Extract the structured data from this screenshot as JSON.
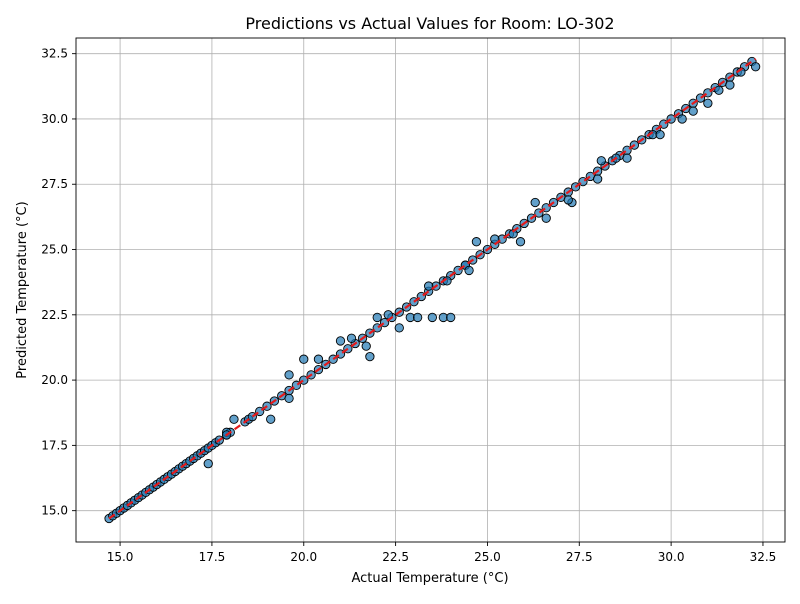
{
  "chart_data": {
    "type": "scatter",
    "title": "Predictions vs Actual Values for Room: LO-302",
    "xlabel": "Actual Temperature (°C)",
    "ylabel": "Predicted Temperature (°C)",
    "xlim": [
      13.8,
      33.1
    ],
    "ylim": [
      13.8,
      33.1
    ],
    "xticks": [
      15.0,
      17.5,
      20.0,
      22.5,
      25.0,
      27.5,
      30.0,
      32.5
    ],
    "yticks": [
      15.0,
      17.5,
      20.0,
      22.5,
      25.0,
      27.5,
      30.0,
      32.5
    ],
    "xtick_labels": [
      "15.0",
      "17.5",
      "20.0",
      "22.5",
      "25.0",
      "27.5",
      "30.0",
      "32.5"
    ],
    "ytick_labels": [
      "15.0",
      "17.5",
      "20.0",
      "22.5",
      "25.0",
      "27.5",
      "30.0",
      "32.5"
    ],
    "grid": true,
    "reference_line": {
      "x": [
        14.7,
        32.3
      ],
      "y": [
        14.7,
        32.3
      ],
      "color": "#e31a1c",
      "style": "dashed"
    },
    "point_color": "#1f77b4",
    "series": [
      {
        "x": [
          14.7,
          14.8,
          14.9,
          15.0,
          15.1,
          15.2,
          15.3,
          15.4,
          15.5,
          15.6,
          15.7,
          15.8,
          15.9,
          16.0,
          16.1,
          16.2,
          16.3,
          16.4,
          16.5,
          16.6,
          16.7,
          16.8,
          16.9,
          17.0,
          17.1,
          17.2,
          17.3,
          17.4,
          17.5,
          17.6,
          17.7,
          17.9,
          18.0,
          18.4,
          18.5,
          18.6,
          18.8,
          19.0,
          19.2,
          19.4,
          19.6,
          19.8,
          20.0,
          20.2,
          20.4,
          20.6,
          20.8,
          21.0,
          21.2,
          21.4,
          21.6,
          21.8,
          22.0,
          22.2,
          22.4,
          22.6,
          22.8,
          23.0,
          23.2,
          23.4,
          23.6,
          23.8,
          24.0,
          24.2,
          24.4,
          24.6,
          24.8,
          25.0,
          25.2,
          25.4,
          25.6,
          25.8,
          26.0,
          26.2,
          26.4,
          26.6,
          26.8,
          27.0,
          27.2,
          27.4,
          27.6,
          27.8,
          28.0,
          28.2,
          28.4,
          28.6,
          28.8,
          29.0,
          29.2,
          29.4,
          29.6,
          29.8,
          30.0,
          30.2,
          30.4,
          30.6,
          30.8,
          31.0,
          31.2,
          31.4,
          31.6,
          31.8,
          32.0,
          32.2,
          32.3,
          17.4,
          17.9,
          18.1,
          19.1,
          19.6,
          20.0,
          21.3,
          21.8,
          22.0,
          22.9,
          23.1,
          23.5,
          23.8,
          24.0,
          24.4,
          24.7,
          25.9,
          26.3,
          27.3,
          28.0,
          28.5,
          29.5,
          30.3,
          31.0,
          31.6,
          17.9,
          19.6,
          20.4,
          21.0,
          21.7,
          22.3,
          22.6,
          23.4,
          23.9,
          24.5,
          25.2,
          25.7,
          26.6,
          27.2,
          28.1,
          28.8,
          29.7,
          30.6,
          31.3,
          31.9
        ],
        "y": [
          14.7,
          14.8,
          14.9,
          15.0,
          15.1,
          15.2,
          15.3,
          15.4,
          15.5,
          15.6,
          15.7,
          15.8,
          15.9,
          16.0,
          16.1,
          16.2,
          16.3,
          16.4,
          16.5,
          16.6,
          16.7,
          16.8,
          16.9,
          17.0,
          17.1,
          17.2,
          17.3,
          17.4,
          17.5,
          17.6,
          17.7,
          17.9,
          18.0,
          18.4,
          18.5,
          18.6,
          18.8,
          19.0,
          19.2,
          19.4,
          19.6,
          19.8,
          20.0,
          20.2,
          20.4,
          20.6,
          20.8,
          21.0,
          21.2,
          21.4,
          21.6,
          21.8,
          22.0,
          22.2,
          22.4,
          22.6,
          22.8,
          23.0,
          23.2,
          23.4,
          23.6,
          23.8,
          24.0,
          24.2,
          24.4,
          24.6,
          24.8,
          25.0,
          25.2,
          25.4,
          25.6,
          25.8,
          26.0,
          26.2,
          26.4,
          26.6,
          26.8,
          27.0,
          27.2,
          27.4,
          27.6,
          27.8,
          28.0,
          28.2,
          28.4,
          28.6,
          28.8,
          29.0,
          29.2,
          29.4,
          29.6,
          29.8,
          30.0,
          30.2,
          30.4,
          30.6,
          30.8,
          31.0,
          31.2,
          31.4,
          31.6,
          31.8,
          32.0,
          32.2,
          32.0,
          16.8,
          18.0,
          18.5,
          18.5,
          20.2,
          20.8,
          21.6,
          20.9,
          22.4,
          22.4,
          22.4,
          22.4,
          22.4,
          22.4,
          24.4,
          25.3,
          25.3,
          26.8,
          26.8,
          27.7,
          28.5,
          29.4,
          30.0,
          30.6,
          31.3,
          17.9,
          19.3,
          20.8,
          21.5,
          21.3,
          22.5,
          22.0,
          23.6,
          23.8,
          24.2,
          25.4,
          25.6,
          26.2,
          26.9,
          28.4,
          28.5,
          29.4,
          30.3,
          31.1,
          31.8
        ]
      }
    ]
  }
}
